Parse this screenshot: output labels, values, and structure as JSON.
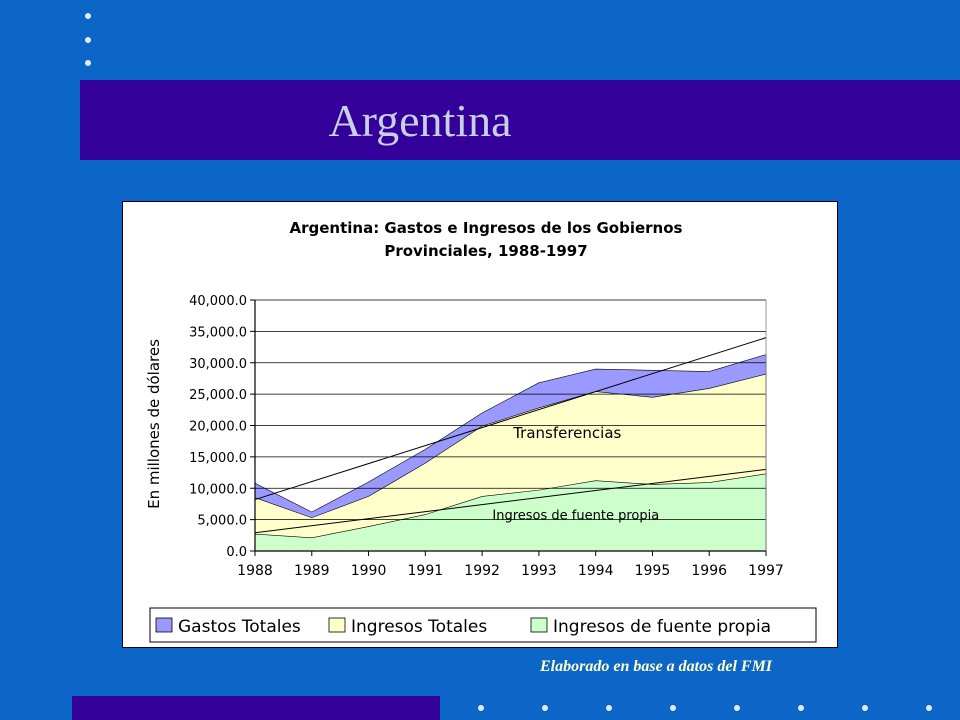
{
  "slide": {
    "title": "Argentina",
    "source_note": "Elaborado en base a datos del FMI",
    "colors": {
      "background": "#0b66c8",
      "title_bar": "#330099",
      "title_text": "#c9cfe8",
      "note_text": "#ffffcc"
    }
  },
  "chart_data": {
    "type": "area",
    "title_line1": "Argentina: Gastos e Ingresos de los Gobiernos",
    "title_line2": "Provinciales, 1988-1997",
    "xlabel": "",
    "ylabel": "En millones de dólares",
    "x": [
      "1988",
      "1989",
      "1990",
      "1991",
      "1992",
      "1993",
      "1994",
      "1995",
      "1996",
      "1997"
    ],
    "y_ticks": [
      "0.0",
      "5,000.0",
      "10,000.0",
      "15,000.0",
      "20,000.0",
      "25,000.0",
      "30,000.0",
      "35,000.0",
      "40,000.0"
    ],
    "ylim": [
      0,
      40000
    ],
    "grid": true,
    "legend_position": "bottom",
    "series": [
      {
        "name": "Gastos Totales",
        "color": "#9999ff",
        "values": [
          10800,
          6200,
          11000,
          16200,
          22000,
          26800,
          29000,
          28800,
          28600,
          31300
        ]
      },
      {
        "name": "Ingresos Totales",
        "color": "#ffffcc",
        "values": [
          8500,
          5300,
          8700,
          14000,
          19900,
          22800,
          25400,
          24500,
          25900,
          28200
        ]
      },
      {
        "name": "Ingresos de fuente propia",
        "color": "#ccffcc",
        "values": [
          2700,
          2100,
          3900,
          5800,
          8700,
          9700,
          11200,
          10600,
          10900,
          12300
        ]
      }
    ],
    "trendlines": [
      {
        "from": [
          0,
          8200
        ],
        "to": [
          9,
          34000
        ]
      },
      {
        "from": [
          0,
          2900
        ],
        "to": [
          9,
          13000
        ]
      }
    ],
    "annotations": [
      {
        "text": "Transferencias",
        "x": 5.5,
        "y": 18000
      },
      {
        "text": "Ingresos de fuente propia",
        "x": 5.65,
        "y": 5000
      }
    ]
  }
}
